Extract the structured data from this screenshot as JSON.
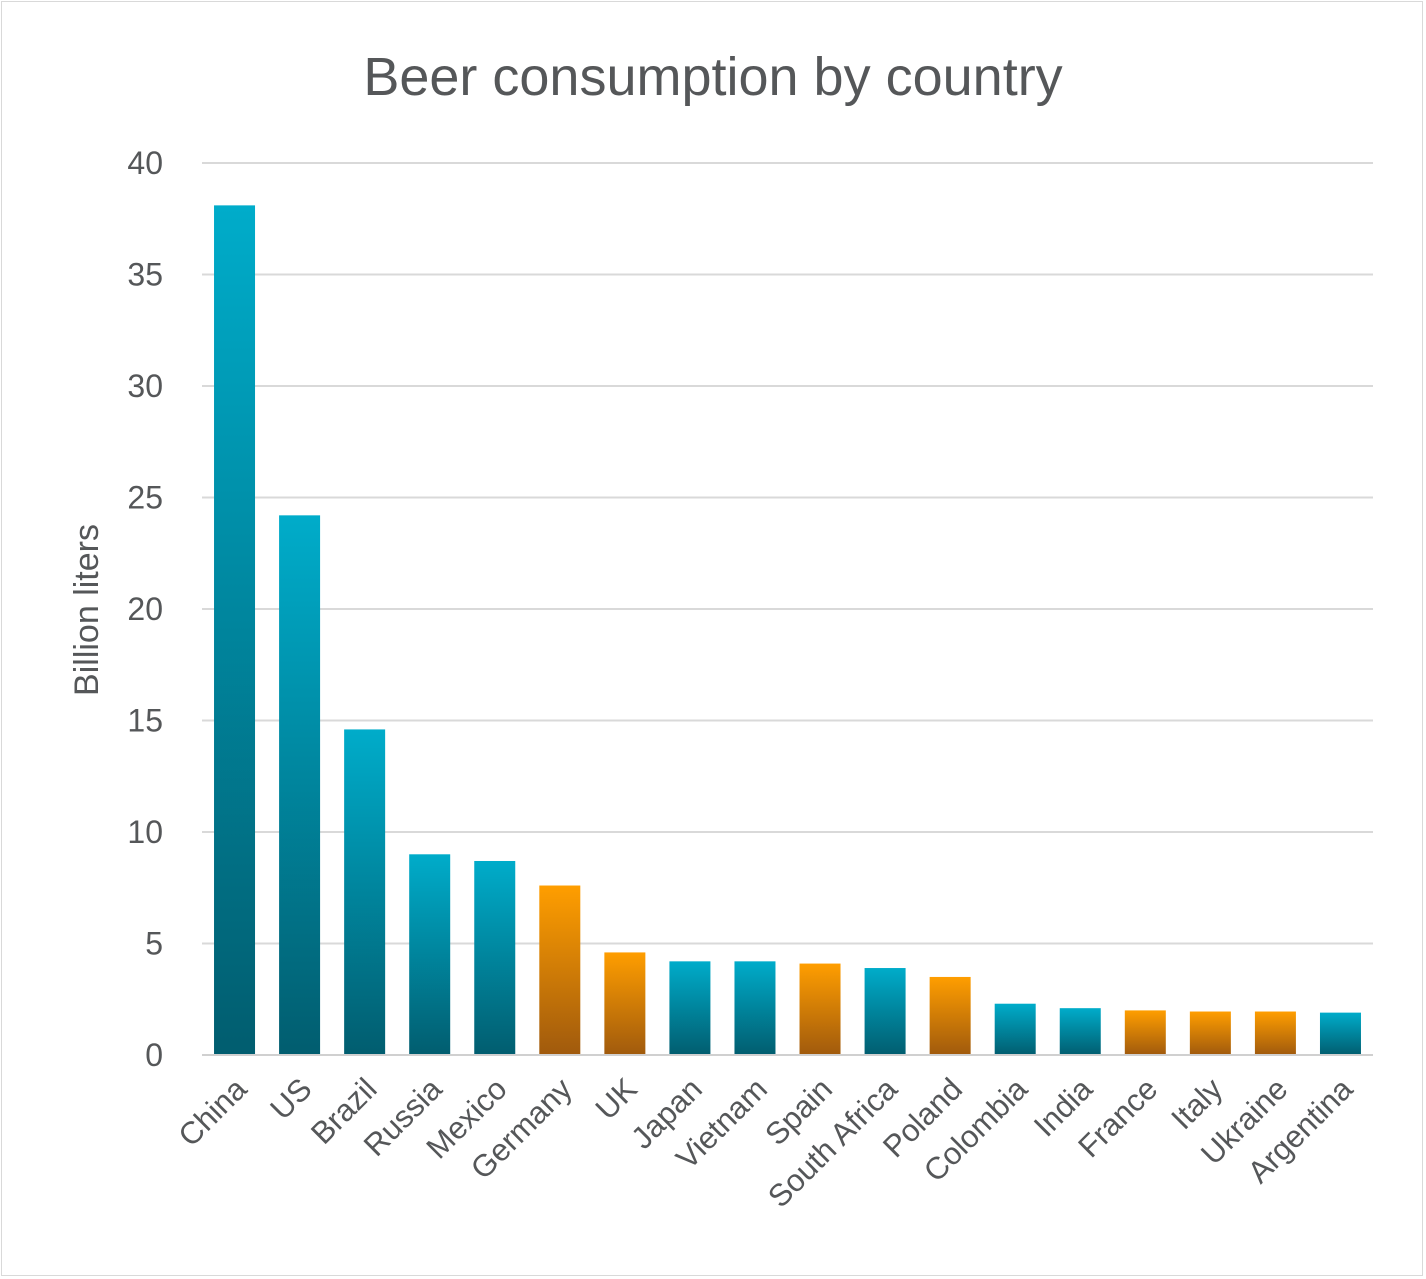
{
  "chart_data": {
    "type": "bar",
    "title": "Beer consumption by country",
    "xlabel": "",
    "ylabel": "Billion liters",
    "ylim": [
      0,
      40
    ],
    "yticks": [
      0,
      5,
      10,
      15,
      20,
      25,
      30,
      35,
      40
    ],
    "grid": true,
    "categories": [
      "China",
      "US",
      "Brazil",
      "Russia",
      "Mexico",
      "Germany",
      "UK",
      "Japan",
      "Vietnam",
      "Spain",
      "South Africa",
      "Poland",
      "Colombia",
      "India",
      "France",
      "Italy",
      "Ukraine",
      "Argentina"
    ],
    "values": [
      38.1,
      24.2,
      14.6,
      9.0,
      8.7,
      7.6,
      4.6,
      4.2,
      4.2,
      4.1,
      3.9,
      3.5,
      2.3,
      2.1,
      2.0,
      1.95,
      1.95,
      1.9
    ],
    "bar_groups": [
      "blue",
      "blue",
      "blue",
      "blue",
      "blue",
      "orange",
      "orange",
      "blue",
      "blue",
      "orange",
      "blue",
      "orange",
      "blue",
      "blue",
      "orange",
      "orange",
      "orange",
      "blue"
    ],
    "colors": {
      "blue_top": "#00acca",
      "blue_bottom": "#015d6f",
      "orange_top": "#ff9e00",
      "orange_bottom": "#a05a0d",
      "text": "#555759",
      "grid": "#d9d9d9"
    }
  }
}
